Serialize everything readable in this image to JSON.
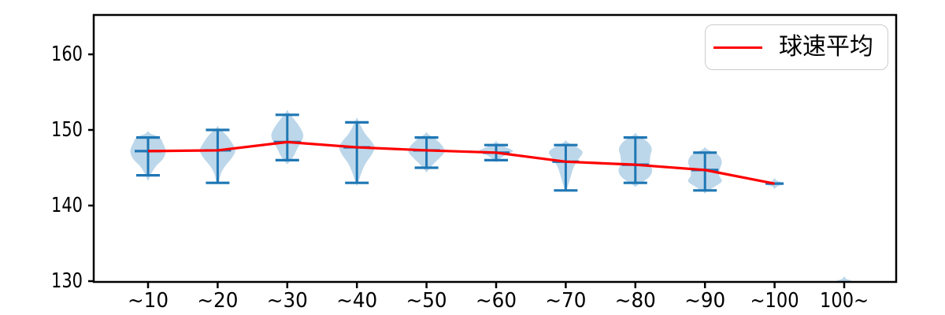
{
  "chart_data": {
    "type": "violin",
    "title": "",
    "xlabel": "",
    "ylabel": "",
    "grid": false,
    "categories": [
      "~10",
      "~20",
      "~30",
      "~40",
      "~50",
      "~60",
      "~70",
      "~80",
      "~90",
      "~100",
      "100~"
    ],
    "y_ticks": [
      130,
      140,
      150,
      160
    ],
    "ylim": [
      129.9,
      165.2
    ],
    "legend": {
      "label": "球速平均",
      "position": "upper right",
      "line_color": "#ff0000"
    },
    "mean_line": {
      "name": "球速平均",
      "color": "#ff0000",
      "values": [
        147.2,
        147.3,
        148.4,
        147.7,
        147.3,
        147.0,
        145.8,
        145.4,
        144.7,
        142.9,
        null
      ]
    },
    "violins": [
      {
        "category": "~10",
        "min": 144,
        "max": 149,
        "mean": 147.2,
        "single": false,
        "width": 1.0,
        "profile": [
          [
            149.5,
            0.15
          ],
          [
            149.0,
            0.65
          ],
          [
            148.2,
            0.85
          ],
          [
            147.2,
            1.0
          ],
          [
            146.2,
            0.85
          ],
          [
            145.2,
            0.45
          ],
          [
            144.3,
            0.2
          ],
          [
            143.6,
            0.07
          ]
        ]
      },
      {
        "category": "~20",
        "min": 143,
        "max": 150,
        "mean": 147.3,
        "single": false,
        "width": 1.0,
        "profile": [
          [
            150.2,
            0.1
          ],
          [
            149.3,
            0.5
          ],
          [
            148.3,
            0.8
          ],
          [
            147.3,
            1.0
          ],
          [
            146.3,
            0.8
          ],
          [
            145.3,
            0.45
          ],
          [
            144.3,
            0.2
          ],
          [
            143.1,
            0.07
          ]
        ]
      },
      {
        "category": "~30",
        "min": 146,
        "max": 152,
        "mean": 148.4,
        "single": false,
        "width": 0.9,
        "profile": [
          [
            152.3,
            0.1
          ],
          [
            151.5,
            0.4
          ],
          [
            150.5,
            0.75
          ],
          [
            149.4,
            1.0
          ],
          [
            148.5,
            0.9
          ],
          [
            147.6,
            0.65
          ],
          [
            146.6,
            0.42
          ],
          [
            145.8,
            0.15
          ]
        ]
      },
      {
        "category": "~40",
        "min": 143,
        "max": 151,
        "mean": 147.7,
        "single": false,
        "width": 1.0,
        "profile": [
          [
            151.3,
            0.07
          ],
          [
            150.4,
            0.25
          ],
          [
            149.4,
            0.5
          ],
          [
            148.4,
            0.85
          ],
          [
            147.6,
            1.0
          ],
          [
            146.6,
            0.8
          ],
          [
            145.6,
            0.5
          ],
          [
            144.6,
            0.3
          ],
          [
            143.6,
            0.15
          ],
          [
            142.9,
            0.05
          ]
        ]
      },
      {
        "category": "~50",
        "min": 145,
        "max": 149,
        "mean": 147.3,
        "single": false,
        "width": 1.0,
        "profile": [
          [
            149.4,
            0.12
          ],
          [
            148.6,
            0.6
          ],
          [
            147.7,
            0.95
          ],
          [
            147.0,
            1.0
          ],
          [
            146.2,
            0.7
          ],
          [
            145.4,
            0.35
          ],
          [
            144.7,
            0.1
          ]
        ]
      },
      {
        "category": "~60",
        "min": 146,
        "max": 148,
        "mean": 147.0,
        "single": false,
        "width": 0.95,
        "profile": [
          [
            148.3,
            0.08
          ],
          [
            147.8,
            0.5
          ],
          [
            147.2,
            1.0
          ],
          [
            146.6,
            0.5
          ],
          [
            146.0,
            0.1
          ]
        ]
      },
      {
        "category": "~70",
        "min": 142,
        "max": 148,
        "mean": 145.8,
        "single": false,
        "width": 0.95,
        "profile": [
          [
            148.3,
            0.15
          ],
          [
            147.6,
            0.75
          ],
          [
            147.0,
            1.0
          ],
          [
            146.1,
            0.75
          ],
          [
            145.1,
            0.48
          ],
          [
            144.1,
            0.33
          ],
          [
            143.1,
            0.2
          ],
          [
            142.2,
            0.07
          ]
        ]
      },
      {
        "category": "~80",
        "min": 143,
        "max": 149,
        "mean": 145.4,
        "single": false,
        "width": 1.0,
        "profile": [
          [
            149.3,
            0.12
          ],
          [
            148.5,
            0.65
          ],
          [
            147.6,
            0.92
          ],
          [
            146.6,
            0.85
          ],
          [
            145.6,
            0.82
          ],
          [
            144.6,
            0.95
          ],
          [
            143.7,
            0.75
          ],
          [
            142.8,
            0.18
          ]
        ]
      },
      {
        "category": "~90",
        "min": 142,
        "max": 147,
        "mean": 144.7,
        "single": false,
        "width": 1.0,
        "profile": [
          [
            147.4,
            0.15
          ],
          [
            146.7,
            0.75
          ],
          [
            145.8,
            0.95
          ],
          [
            144.9,
            0.85
          ],
          [
            144.0,
            0.8
          ],
          [
            143.2,
            0.95
          ],
          [
            142.5,
            0.55
          ],
          [
            141.9,
            0.12
          ]
        ]
      },
      {
        "category": "~100",
        "min": 143,
        "max": 143,
        "mean": 142.9,
        "single": true,
        "width": 0.5,
        "profile": [
          [
            143.3,
            0.25
          ],
          [
            142.9,
            1.0
          ],
          [
            142.5,
            0.25
          ]
        ]
      },
      {
        "category": "100~",
        "min": 130,
        "max": 130,
        "mean": null,
        "single": true,
        "width": 0.5,
        "profile": [
          [
            130.3,
            0.25
          ],
          [
            129.9,
            1.0
          ],
          [
            129.5,
            0.25
          ]
        ]
      }
    ],
    "colors": {
      "violin_fill": "#bdd7ea",
      "violin_line": "#1f77b4",
      "mean_line": "#ff0000",
      "axis": "#000000",
      "text": "#000000",
      "legend_border": "#cccccc"
    }
  }
}
